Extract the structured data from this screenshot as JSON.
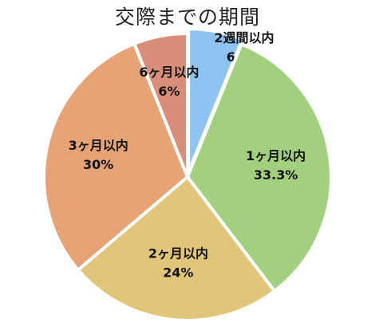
{
  "chart_data": {
    "type": "pie",
    "title": "交際までの期間",
    "start_angle_deg": 90,
    "direction": "clockwise",
    "slices": [
      {
        "label": "2週間以内",
        "value_text": "6.1%",
        "value": 6.1,
        "color": "#8EC4F2"
      },
      {
        "label": "1ヶ月以内",
        "value_text": "33.3%",
        "value": 33.3,
        "color": "#A3D07F"
      },
      {
        "label": "2ヶ月以内",
        "value_text": "24%",
        "value": 24,
        "color": "#E1C57A"
      },
      {
        "label": "3ヶ月以内",
        "value_text": "30%",
        "value": 30,
        "color": "#E5A376"
      },
      {
        "label": "6ヶ月以内",
        "value_text": "6%",
        "value": 6,
        "color": "#D98E79"
      }
    ]
  }
}
